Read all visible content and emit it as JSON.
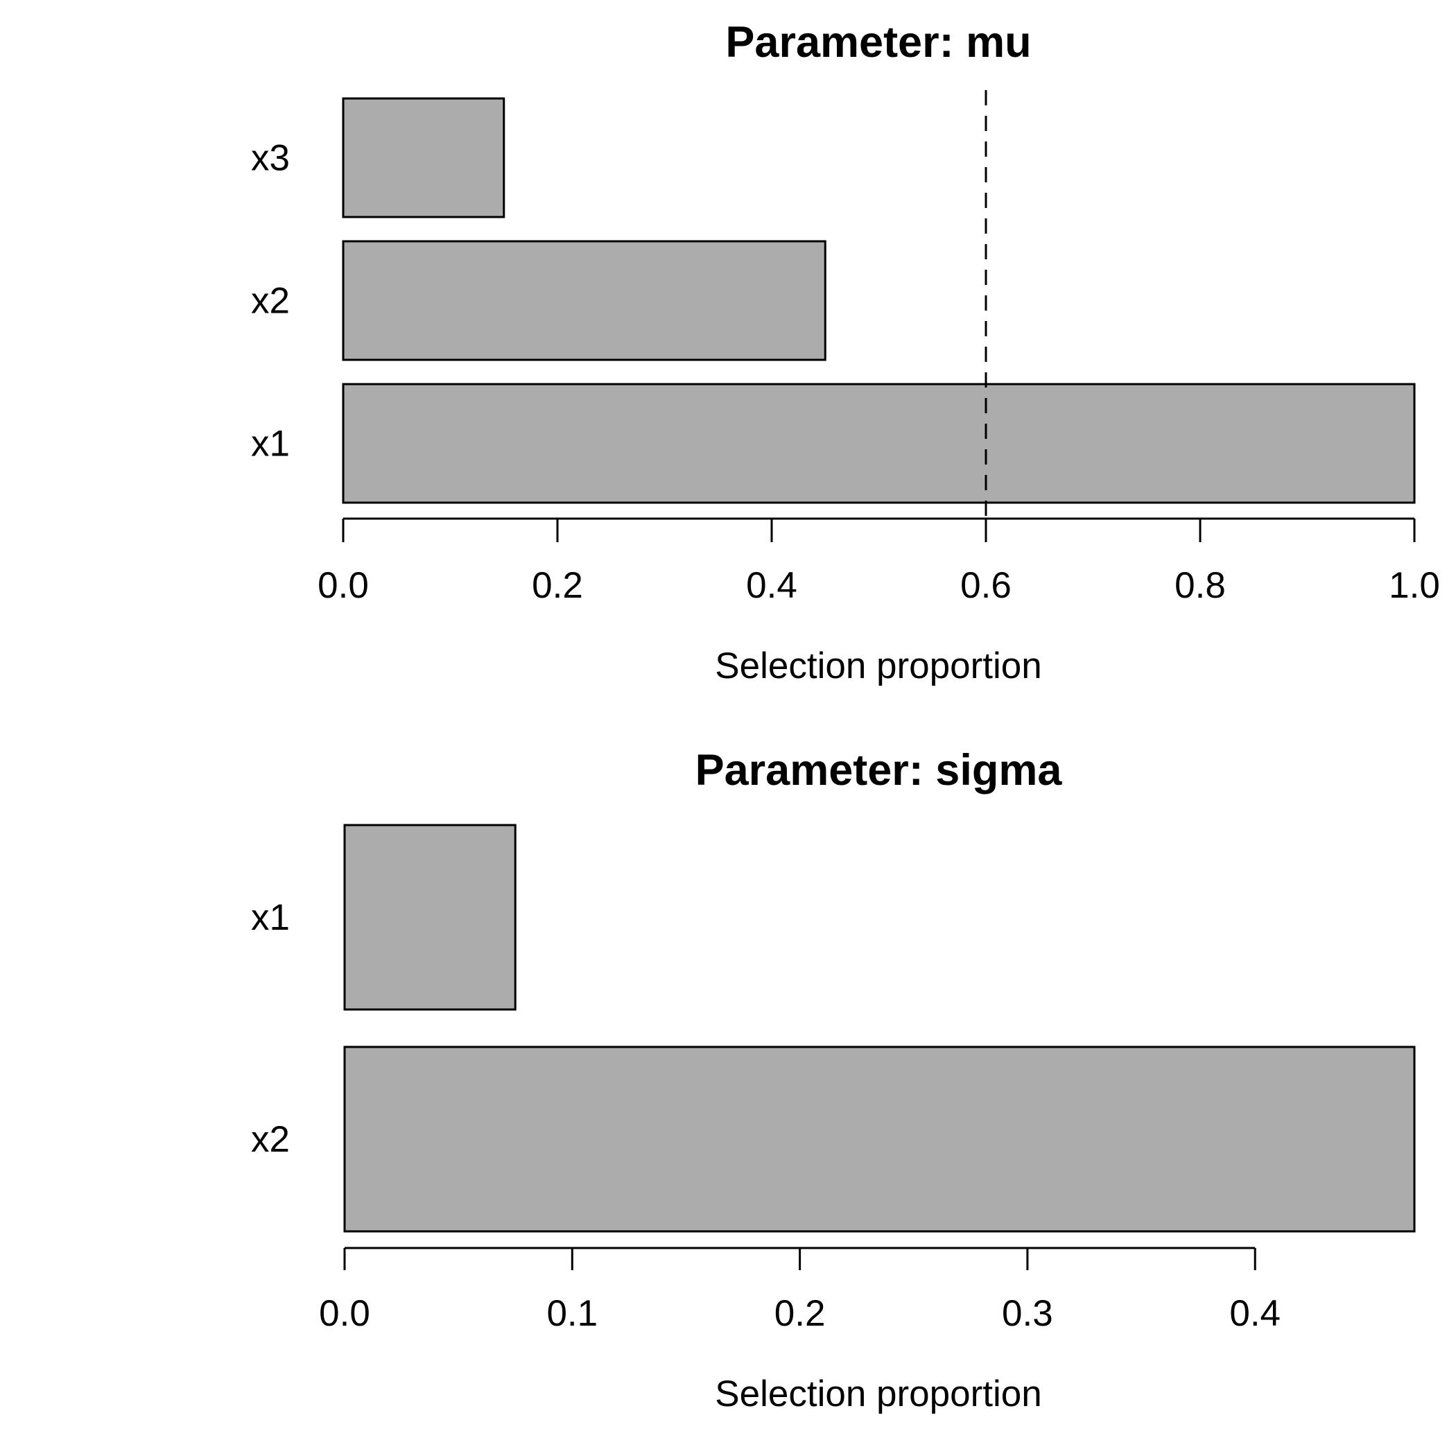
{
  "page": {
    "background": "#ffffff",
    "text_color": "#000000"
  },
  "chart_data": [
    {
      "type": "bar",
      "orientation": "horizontal",
      "title": "Parameter: mu",
      "categories": [
        "x3",
        "x2",
        "x1"
      ],
      "categories_order": "top-to-bottom",
      "values": [
        0.15,
        0.45,
        1.0
      ],
      "xlabel": "Selection proportion",
      "ylabel": "",
      "xlim": [
        0,
        1.0
      ],
      "xticks": [
        0,
        0.2,
        0.4,
        0.6,
        0.8,
        1.0
      ],
      "xtick_labels": [
        "0.0",
        "0.2",
        "0.4",
        "0.6",
        "0.8",
        "1.0"
      ],
      "threshold_line": 0.6,
      "threshold_style": "dashed",
      "bar_color": "#acacac",
      "bar_border_color": "#000000",
      "grid": false,
      "legend": null
    },
    {
      "type": "bar",
      "orientation": "horizontal",
      "title": "Parameter: sigma",
      "categories": [
        "x1",
        "x2"
      ],
      "categories_order": "top-to-bottom",
      "values": [
        0.075,
        0.47
      ],
      "xlabel": "Selection proportion",
      "ylabel": "",
      "xlim": [
        0,
        0.47
      ],
      "xticks": [
        0,
        0.1,
        0.2,
        0.3,
        0.4
      ],
      "xtick_labels": [
        "0.0",
        "0.1",
        "0.2",
        "0.3",
        "0.4"
      ],
      "threshold_line": null,
      "threshold_style": null,
      "bar_color": "#acacac",
      "bar_border_color": "#000000",
      "grid": false,
      "legend": null
    }
  ]
}
